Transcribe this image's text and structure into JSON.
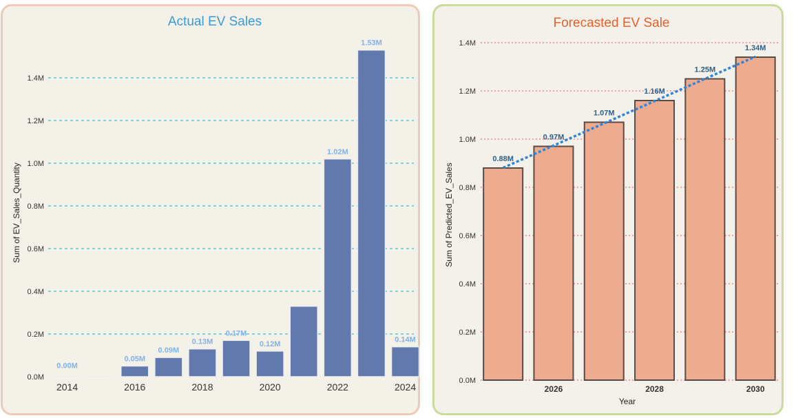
{
  "chart_data": [
    {
      "type": "bar",
      "title": "Actual EV Sales",
      "xlabel": "",
      "ylabel": "Sum of EV_Sales_Quantity",
      "categories": [
        "2014",
        "2015",
        "2016",
        "2017",
        "2018",
        "2019",
        "2020",
        "2021",
        "2022",
        "2023",
        "2024"
      ],
      "values": [
        0.0002,
        0.002,
        0.05,
        0.09,
        0.13,
        0.17,
        0.12,
        0.33,
        1.02,
        1.53,
        0.14
      ],
      "value_units": "M",
      "data_labels": [
        "0.00M",
        "",
        "0.05M",
        "0.09M",
        "0.13M",
        "0.17M",
        "0.12M",
        "",
        "1.02M",
        "1.53M",
        "0.14M"
      ],
      "x_tick_labels": [
        "2014",
        "2016",
        "2018",
        "2020",
        "2022",
        "2024"
      ],
      "y_ticks": [
        0,
        0.2,
        0.4,
        0.6,
        0.8,
        1.0,
        1.2,
        1.4
      ],
      "y_tick_labels": [
        "0.0M",
        "0.2M",
        "0.4M",
        "0.6M",
        "0.8M",
        "1.0M",
        "1.2M",
        "1.4M"
      ],
      "ylim": [
        0,
        1.55
      ],
      "grid": true,
      "colors": {
        "bar": "#6279ae",
        "bar_edge": "#eeeeee",
        "grid": "#7fd3d8",
        "title": "#3a9ad9",
        "panel_border": "#f0c9b6"
      }
    },
    {
      "type": "bar",
      "title": "Forecasted EV Sale",
      "xlabel": "Year",
      "ylabel": "Sum of Predicted_EV_Sales",
      "categories": [
        "2025",
        "2026",
        "2027",
        "2028",
        "2029",
        "2030"
      ],
      "values": [
        0.88,
        0.97,
        1.07,
        1.16,
        1.25,
        1.34
      ],
      "value_units": "M",
      "data_labels": [
        "0.88M",
        "0.97M",
        "1.07M",
        "1.16M",
        "1.25M",
        "1.34M"
      ],
      "x_tick_labels": [
        "2026",
        "2028",
        "2030"
      ],
      "y_ticks": [
        0,
        0.2,
        0.4,
        0.6,
        0.8,
        1.0,
        1.2,
        1.4
      ],
      "y_tick_labels": [
        "0.0M",
        "0.2M",
        "0.4M",
        "0.6M",
        "0.8M",
        "1.0M",
        "1.2M",
        "1.4M"
      ],
      "ylim": [
        0,
        1.4
      ],
      "grid": true,
      "trend_line": true,
      "colors": {
        "bar": "#edac90",
        "bar_edge": "#5a4a44",
        "grid": "#f0a0a8",
        "title": "#e8602c",
        "trend": "#2f86d6",
        "panel_border": "#c9dc9a"
      }
    }
  ]
}
